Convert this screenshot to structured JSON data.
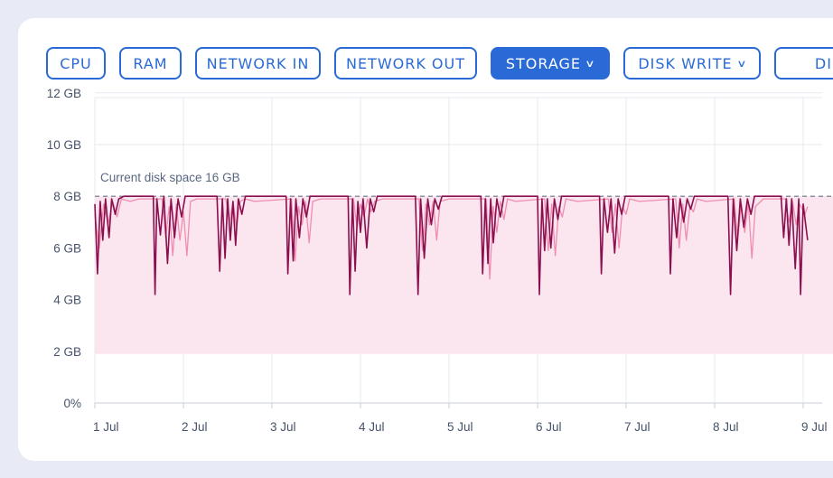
{
  "tabs": [
    {
      "label": "CPU",
      "active": false,
      "dropdown": false
    },
    {
      "label": "RAM",
      "active": false,
      "dropdown": false
    },
    {
      "label": "NETWORK IN",
      "active": false,
      "dropdown": false
    },
    {
      "label": "NETWORK OUT",
      "active": false,
      "dropdown": false
    },
    {
      "label": "STORAGE",
      "active": true,
      "dropdown": true
    },
    {
      "label": "DISK WRITE",
      "active": false,
      "dropdown": true
    },
    {
      "label": "DIS",
      "active": false,
      "dropdown": false
    }
  ],
  "colors": {
    "accent": "#2a6ad6",
    "series_dark": "#8a0f4f",
    "series_light": "#f08cb0",
    "band_fill": "#fbe5ee",
    "grid": "#e6e9f0"
  },
  "chart_data": {
    "type": "line",
    "title": "",
    "xlabel": "",
    "ylabel": "",
    "x_ticks": [
      "1 Jul",
      "2 Jul",
      "3 Jul",
      "4 Jul",
      "5 Jul",
      "6 Jul",
      "7 Jul",
      "8 Jul",
      "9 Jul"
    ],
    "y_ticks": [
      "0%",
      "2 GB",
      "4 GB",
      "6 GB",
      "8 GB",
      "10 GB",
      "12 GB"
    ],
    "ylim": [
      0,
      12
    ],
    "xlim": [
      0,
      8.05
    ],
    "grid": true,
    "annotations": [
      {
        "text": "Current disk space 16 GB",
        "y": 8
      }
    ],
    "band": {
      "y_min": 1.9,
      "y_max": 8.0
    },
    "series": [
      {
        "style": "dark",
        "points": [
          [
            0.0,
            7.7
          ],
          [
            0.03,
            5.0
          ],
          [
            0.06,
            7.8
          ],
          [
            0.09,
            6.3
          ],
          [
            0.12,
            7.9
          ],
          [
            0.16,
            6.4
          ],
          [
            0.19,
            7.9
          ],
          [
            0.23,
            7.3
          ],
          [
            0.27,
            7.9
          ],
          [
            0.33,
            8.0
          ],
          [
            0.45,
            8.0
          ],
          [
            0.66,
            8.0
          ],
          [
            0.68,
            4.2
          ],
          [
            0.7,
            7.9
          ],
          [
            0.74,
            6.5
          ],
          [
            0.78,
            8.0
          ],
          [
            0.82,
            5.4
          ],
          [
            0.86,
            7.9
          ],
          [
            0.9,
            6.4
          ],
          [
            0.94,
            7.9
          ],
          [
            0.98,
            7.2
          ],
          [
            1.02,
            8.0
          ],
          [
            1.1,
            8.0
          ],
          [
            1.38,
            8.0
          ],
          [
            1.41,
            5.1
          ],
          [
            1.44,
            7.9
          ],
          [
            1.47,
            5.6
          ],
          [
            1.5,
            7.9
          ],
          [
            1.53,
            6.3
          ],
          [
            1.56,
            7.8
          ],
          [
            1.59,
            6.1
          ],
          [
            1.62,
            7.9
          ],
          [
            1.66,
            7.3
          ],
          [
            1.7,
            8.0
          ],
          [
            1.8,
            8.0
          ],
          [
            2.16,
            8.0
          ],
          [
            2.18,
            5.0
          ],
          [
            2.21,
            7.9
          ],
          [
            2.24,
            5.5
          ],
          [
            2.27,
            7.9
          ],
          [
            2.31,
            6.4
          ],
          [
            2.35,
            7.9
          ],
          [
            2.39,
            7.2
          ],
          [
            2.43,
            8.0
          ],
          [
            2.55,
            8.0
          ],
          [
            2.86,
            8.0
          ],
          [
            2.88,
            4.2
          ],
          [
            2.91,
            7.9
          ],
          [
            2.94,
            5.1
          ],
          [
            2.97,
            7.8
          ],
          [
            3.0,
            6.6
          ],
          [
            3.03,
            7.9
          ],
          [
            3.07,
            6.0
          ],
          [
            3.11,
            7.9
          ],
          [
            3.15,
            7.4
          ],
          [
            3.19,
            8.0
          ],
          [
            3.3,
            8.0
          ],
          [
            3.62,
            8.0
          ],
          [
            3.65,
            4.2
          ],
          [
            3.68,
            7.9
          ],
          [
            3.72,
            5.6
          ],
          [
            3.76,
            7.9
          ],
          [
            3.8,
            6.9
          ],
          [
            3.84,
            7.9
          ],
          [
            3.88,
            7.5
          ],
          [
            3.92,
            8.0
          ],
          [
            4.05,
            8.0
          ],
          [
            4.36,
            8.0
          ],
          [
            4.38,
            5.0
          ],
          [
            4.41,
            7.9
          ],
          [
            4.44,
            5.4
          ],
          [
            4.47,
            7.9
          ],
          [
            4.5,
            6.2
          ],
          [
            4.54,
            7.9
          ],
          [
            4.58,
            7.2
          ],
          [
            4.62,
            8.0
          ],
          [
            4.75,
            8.0
          ],
          [
            5.0,
            8.0
          ],
          [
            5.02,
            4.2
          ],
          [
            5.05,
            7.9
          ],
          [
            5.08,
            5.9
          ],
          [
            5.11,
            7.9
          ],
          [
            5.15,
            6.0
          ],
          [
            5.19,
            7.9
          ],
          [
            5.23,
            7.1
          ],
          [
            5.27,
            8.0
          ],
          [
            5.4,
            8.0
          ],
          [
            5.7,
            8.0
          ],
          [
            5.72,
            5.0
          ],
          [
            5.75,
            7.9
          ],
          [
            5.79,
            6.6
          ],
          [
            5.83,
            7.9
          ],
          [
            5.87,
            5.8
          ],
          [
            5.91,
            7.9
          ],
          [
            5.95,
            7.3
          ],
          [
            5.99,
            8.0
          ],
          [
            6.1,
            8.0
          ],
          [
            6.48,
            8.0
          ],
          [
            6.5,
            5.0
          ],
          [
            6.53,
            7.9
          ],
          [
            6.57,
            6.4
          ],
          [
            6.61,
            7.9
          ],
          [
            6.65,
            7.0
          ],
          [
            6.69,
            7.9
          ],
          [
            6.73,
            7.5
          ],
          [
            6.77,
            8.0
          ],
          [
            6.88,
            8.0
          ],
          [
            7.15,
            8.0
          ],
          [
            7.18,
            4.2
          ],
          [
            7.21,
            7.9
          ],
          [
            7.25,
            5.9
          ],
          [
            7.29,
            7.9
          ],
          [
            7.33,
            6.8
          ],
          [
            7.37,
            7.9
          ],
          [
            7.41,
            7.3
          ],
          [
            7.45,
            8.0
          ],
          [
            7.55,
            8.0
          ],
          [
            7.75,
            8.0
          ],
          [
            7.78,
            6.4
          ],
          [
            7.81,
            7.9
          ],
          [
            7.84,
            6.1
          ],
          [
            7.87,
            7.9
          ],
          [
            7.91,
            5.2
          ],
          [
            7.95,
            7.9
          ],
          [
            7.97,
            4.2
          ],
          [
            8.0,
            7.7
          ],
          [
            8.05,
            6.3
          ]
        ]
      },
      {
        "style": "light",
        "points": [
          [
            0.0,
            7.3
          ],
          [
            0.05,
            6.0
          ],
          [
            0.1,
            7.7
          ],
          [
            0.15,
            6.9
          ],
          [
            0.2,
            7.8
          ],
          [
            0.25,
            7.2
          ],
          [
            0.3,
            7.9
          ],
          [
            0.4,
            7.8
          ],
          [
            0.5,
            7.9
          ],
          [
            0.76,
            7.9
          ],
          [
            0.8,
            6.4
          ],
          [
            0.84,
            7.6
          ],
          [
            0.88,
            5.7
          ],
          [
            0.92,
            7.7
          ],
          [
            0.96,
            6.3
          ],
          [
            1.0,
            7.4
          ],
          [
            1.04,
            5.7
          ],
          [
            1.08,
            7.8
          ],
          [
            1.15,
            7.9
          ],
          [
            1.48,
            7.9
          ],
          [
            1.52,
            7.0
          ],
          [
            1.56,
            7.8
          ],
          [
            1.6,
            6.8
          ],
          [
            1.64,
            7.8
          ],
          [
            1.7,
            7.9
          ],
          [
            1.8,
            7.8
          ],
          [
            2.22,
            7.9
          ],
          [
            2.26,
            5.5
          ],
          [
            2.3,
            7.6
          ],
          [
            2.34,
            6.9
          ],
          [
            2.38,
            7.8
          ],
          [
            2.42,
            6.2
          ],
          [
            2.46,
            7.8
          ],
          [
            2.55,
            7.9
          ],
          [
            2.92,
            7.9
          ],
          [
            2.96,
            6.8
          ],
          [
            3.0,
            7.7
          ],
          [
            3.04,
            7.2
          ],
          [
            3.08,
            7.9
          ],
          [
            3.12,
            7.4
          ],
          [
            3.16,
            7.8
          ],
          [
            3.25,
            7.9
          ],
          [
            3.66,
            7.9
          ],
          [
            3.7,
            5.9
          ],
          [
            3.74,
            7.7
          ],
          [
            3.78,
            6.9
          ],
          [
            3.82,
            7.8
          ],
          [
            3.86,
            6.3
          ],
          [
            3.9,
            7.8
          ],
          [
            4.0,
            7.9
          ],
          [
            4.42,
            7.9
          ],
          [
            4.46,
            4.8
          ],
          [
            4.5,
            7.6
          ],
          [
            4.54,
            6.6
          ],
          [
            4.58,
            7.8
          ],
          [
            4.62,
            7.1
          ],
          [
            4.66,
            7.9
          ],
          [
            4.75,
            7.8
          ],
          [
            5.08,
            7.9
          ],
          [
            5.12,
            5.9
          ],
          [
            5.16,
            7.7
          ],
          [
            5.2,
            5.7
          ],
          [
            5.24,
            7.6
          ],
          [
            5.28,
            7.2
          ],
          [
            5.32,
            7.9
          ],
          [
            5.45,
            7.8
          ],
          [
            5.8,
            7.9
          ],
          [
            5.84,
            6.6
          ],
          [
            5.88,
            7.7
          ],
          [
            5.92,
            6.0
          ],
          [
            5.96,
            7.6
          ],
          [
            6.0,
            7.3
          ],
          [
            6.04,
            7.9
          ],
          [
            6.15,
            7.8
          ],
          [
            6.56,
            7.9
          ],
          [
            6.6,
            6.0
          ],
          [
            6.64,
            7.7
          ],
          [
            6.68,
            6.3
          ],
          [
            6.72,
            7.6
          ],
          [
            6.76,
            7.4
          ],
          [
            6.8,
            7.9
          ],
          [
            6.9,
            7.8
          ],
          [
            7.22,
            7.9
          ],
          [
            7.26,
            6.3
          ],
          [
            7.3,
            7.7
          ],
          [
            7.34,
            6.6
          ],
          [
            7.38,
            7.8
          ],
          [
            7.42,
            5.6
          ],
          [
            7.46,
            7.6
          ],
          [
            7.55,
            7.9
          ],
          [
            7.8,
            7.9
          ],
          [
            7.84,
            7.0
          ],
          [
            7.88,
            7.8
          ],
          [
            7.92,
            6.9
          ],
          [
            7.96,
            7.7
          ],
          [
            8.02,
            7.3
          ],
          [
            8.05,
            7.6
          ]
        ]
      }
    ]
  }
}
